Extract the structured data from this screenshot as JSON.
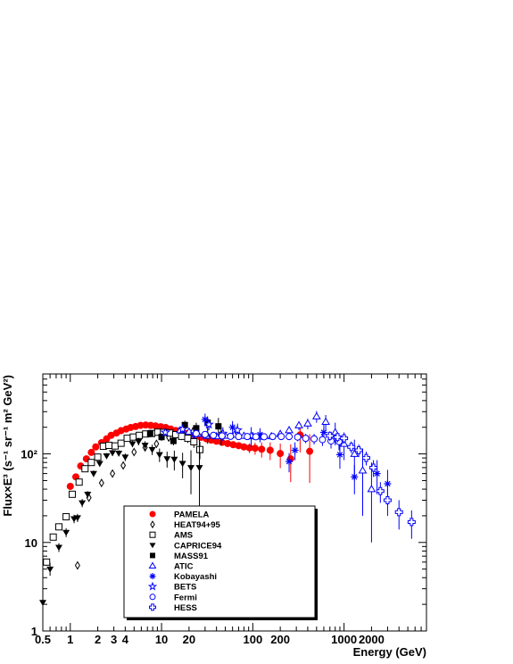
{
  "chart_data": {
    "type": "scatter",
    "xlabel": "Energy (GeV)",
    "ylabel": "Flux×E³ (s⁻¹ sr⁻¹ m² GeV²)",
    "xscale": "log",
    "yscale": "log",
    "xlim": [
      0.5,
      8000
    ],
    "ylim": [
      1,
      800
    ],
    "x_tick_labels": [
      "0.5",
      "1",
      "2",
      "3",
      "4",
      "10",
      "20",
      "100",
      "200",
      "1000",
      "2000"
    ],
    "x_tick_values": [
      0.5,
      1,
      2,
      3,
      4,
      10,
      20,
      100,
      200,
      1000,
      2000
    ],
    "y_tick_labels": [
      "1",
      "10",
      "10²"
    ],
    "y_tick_values": [
      1,
      10,
      100
    ],
    "grid": false,
    "legend_placement": "bottom-center",
    "series": [
      {
        "name": "PAMELA",
        "marker": "filled-circle",
        "color": "#ff0000",
        "x": [
          1.0,
          1.15,
          1.3,
          1.5,
          1.7,
          1.9,
          2.2,
          2.5,
          2.8,
          3.2,
          3.6,
          4.1,
          4.6,
          5.2,
          5.9,
          6.7,
          7.6,
          8.6,
          9.8,
          11.1,
          12.6,
          14.3,
          16.2,
          18.4,
          20.9,
          23.7,
          27,
          31,
          35,
          40,
          46,
          53,
          61,
          70,
          80,
          92,
          106,
          125,
          155,
          200,
          260,
          330,
          420
        ],
        "y": [
          43,
          55,
          73,
          88,
          104,
          120,
          134,
          148,
          162,
          172,
          183,
          191,
          199,
          204,
          210,
          212,
          210,
          207,
          203,
          199,
          191,
          184,
          176,
          170,
          165,
          159,
          154,
          148,
          143,
          139,
          135,
          131,
          127,
          124,
          120,
          117,
          116,
          113,
          110,
          101,
          88,
          164,
          107
        ],
        "err_up": [
          0,
          0,
          0,
          0,
          0,
          0,
          0,
          0,
          0,
          0,
          0,
          0,
          0,
          0,
          0,
          0,
          0,
          0,
          0,
          0,
          0,
          0,
          0,
          0,
          0,
          0,
          0,
          0,
          0,
          0,
          0,
          0,
          0,
          0,
          10,
          15,
          18,
          22,
          25,
          30,
          40,
          60,
          60
        ],
        "err_dn": [
          0,
          0,
          0,
          0,
          0,
          0,
          0,
          0,
          0,
          0,
          0,
          0,
          0,
          0,
          0,
          0,
          0,
          0,
          0,
          0,
          0,
          0,
          0,
          0,
          0,
          0,
          0,
          0,
          0,
          0,
          0,
          0,
          0,
          0,
          10,
          15,
          18,
          22,
          25,
          32,
          40,
          60,
          60
        ]
      },
      {
        "name": "HEAT94+95",
        "marker": "open-diamond",
        "color": "#000000",
        "x": [
          1.2,
          1.6,
          2.2,
          2.9,
          3.8,
          5,
          6.6,
          8.8,
          12,
          16,
          22,
          32,
          45
        ],
        "y": [
          5.5,
          32,
          47,
          60,
          74,
          105,
          118,
          130,
          153,
          163,
          178,
          160,
          165
        ],
        "err_up": [
          0.5,
          3,
          4,
          5,
          6,
          8,
          10,
          12,
          15,
          18,
          22,
          30,
          40
        ],
        "err_dn": [
          0.5,
          3,
          4,
          5,
          6,
          8,
          10,
          12,
          15,
          18,
          22,
          30,
          40
        ]
      },
      {
        "name": "AMS",
        "marker": "open-square",
        "color": "#000000",
        "x": [
          0.55,
          0.65,
          0.75,
          0.9,
          1.05,
          1.25,
          1.45,
          1.7,
          2.0,
          2.3,
          2.65,
          3.1,
          3.6,
          4.2,
          4.9,
          5.7,
          6.7,
          7.8,
          9.1,
          10.5,
          12.3,
          14.3,
          16.6,
          19.4,
          22.6,
          26.3
        ],
        "y": [
          6,
          11.5,
          15,
          19.5,
          35,
          48,
          68,
          80,
          92,
          122,
          125,
          123,
          132,
          150,
          155,
          162,
          168,
          170,
          176,
          175,
          172,
          165,
          158,
          150,
          137,
          112
        ],
        "err_up": [
          0.5,
          0.8,
          1,
          1.5,
          2,
          3,
          4,
          4,
          5,
          6,
          6,
          6,
          7,
          7,
          8,
          8,
          9,
          9,
          10,
          11,
          12,
          13,
          15,
          17,
          20,
          25
        ],
        "err_dn": [
          0.5,
          0.8,
          1,
          1.5,
          2,
          3,
          4,
          4,
          5,
          6,
          6,
          6,
          7,
          7,
          8,
          8,
          9,
          9,
          10,
          11,
          12,
          13,
          15,
          17,
          20,
          25
        ]
      },
      {
        "name": "CAPRICE94",
        "marker": "filled-triangle-down",
        "color": "#000000",
        "x": [
          0.5,
          0.6,
          0.75,
          0.9,
          1.1,
          1.2,
          1.35,
          1.55,
          1.8,
          2.1,
          2.5,
          2.9,
          3.4,
          4.0,
          4.8,
          5.6,
          6.6,
          7.9,
          9.5,
          11.5,
          13.8,
          17,
          21,
          26
        ],
        "y": [
          2.1,
          5.0,
          8.8,
          13,
          18.5,
          19,
          28,
          35,
          60,
          78,
          95,
          103,
          102,
          92,
          130,
          138,
          125,
          112,
          98,
          88,
          87,
          78,
          70,
          70
        ],
        "err_up": [
          0.5,
          0.9,
          1,
          1.5,
          2,
          2,
          3,
          3,
          5,
          6,
          7,
          8,
          8,
          9,
          11,
          13,
          14,
          15,
          17,
          18,
          22,
          25,
          40,
          100
        ],
        "err_dn": [
          0.4,
          0.8,
          1,
          1.5,
          2,
          2,
          3,
          3,
          5,
          6,
          7,
          8,
          8,
          9,
          11,
          13,
          14,
          15,
          17,
          18,
          22,
          25,
          35,
          45
        ]
      },
      {
        "name": "MASS91",
        "marker": "filled-square",
        "color": "#000000",
        "x": [
          7.5,
          10,
          13.5,
          18,
          24,
          32,
          42
        ],
        "y": [
          170,
          155,
          140,
          212,
          195,
          225,
          205
        ],
        "err_up": [
          15,
          15,
          15,
          25,
          30,
          40,
          50
        ],
        "err_dn": [
          15,
          15,
          15,
          25,
          30,
          40,
          50
        ]
      },
      {
        "name": "ATIC",
        "marker": "open-triangle-up",
        "color": "#0000ff",
        "x": [
          16,
          20,
          25,
          31,
          40,
          50,
          63,
          80,
          100,
          125,
          160,
          200,
          250,
          320,
          400,
          500,
          630,
          800,
          1000,
          1300,
          1600,
          2000
        ],
        "y": [
          185,
          178,
          168,
          160,
          158,
          160,
          165,
          160,
          158,
          157,
          158,
          168,
          185,
          210,
          220,
          265,
          230,
          175,
          130,
          100,
          65,
          40
        ],
        "err_up": [
          10,
          10,
          10,
          10,
          10,
          10,
          12,
          12,
          12,
          13,
          14,
          16,
          20,
          25,
          30,
          40,
          45,
          50,
          45,
          45,
          50,
          40
        ],
        "err_dn": [
          10,
          10,
          10,
          10,
          10,
          10,
          12,
          12,
          12,
          13,
          14,
          16,
          20,
          25,
          30,
          40,
          45,
          50,
          45,
          45,
          45,
          30
        ]
      },
      {
        "name": "Kobayashi",
        "marker": "asterisk",
        "color": "#0000ff",
        "x": [
          30,
          60,
          120,
          250,
          290,
          600,
          900,
          1300,
          2300,
          3000
        ],
        "y": [
          245,
          200,
          165,
          82,
          110,
          175,
          98,
          55,
          60,
          46
        ],
        "err_up": [
          40,
          35,
          30,
          20,
          25,
          40,
          30,
          20,
          25,
          20
        ],
        "err_dn": [
          40,
          35,
          30,
          20,
          25,
          40,
          30,
          20,
          25,
          20
        ]
      },
      {
        "name": "BETS",
        "marker": "open-star",
        "color": "#0000ff",
        "x": [
          11,
          17,
          23,
          33,
          47,
          68,
          96
        ],
        "y": [
          175,
          190,
          168,
          215,
          170,
          185,
          160
        ],
        "err_up": [
          15,
          20,
          20,
          30,
          30,
          35,
          40
        ],
        "err_dn": [
          15,
          20,
          20,
          30,
          30,
          35,
          40
        ]
      },
      {
        "name": "Fermi",
        "marker": "open-circle",
        "color": "#0000ff",
        "x": [
          24,
          30,
          37,
          46,
          57,
          70,
          87,
          108,
          133,
          165,
          205,
          250,
          310,
          380,
          470,
          580,
          720,
          880
        ],
        "y": [
          170,
          166,
          162,
          160,
          158,
          157,
          157,
          156,
          156,
          157,
          157,
          157,
          155,
          150,
          148,
          145,
          140,
          138
        ],
        "err_up": [
          8,
          8,
          8,
          8,
          8,
          9,
          9,
          10,
          10,
          11,
          12,
          14,
          16,
          18,
          20,
          22,
          25,
          28
        ],
        "err_dn": [
          8,
          8,
          8,
          8,
          8,
          9,
          9,
          10,
          10,
          11,
          12,
          14,
          16,
          18,
          20,
          22,
          25,
          28
        ]
      },
      {
        "name": "HESS",
        "marker": "open-cross",
        "color": "#0000ff",
        "x": [
          700,
          850,
          1000,
          1200,
          1450,
          1750,
          2100,
          2500,
          3000,
          4000,
          5500
        ],
        "y": [
          160,
          155,
          150,
          120,
          110,
          90,
          70,
          38,
          30,
          22,
          17
        ],
        "err_up": [
          20,
          20,
          20,
          18,
          18,
          16,
          15,
          10,
          10,
          8,
          6
        ],
        "err_dn": [
          20,
          20,
          20,
          18,
          18,
          16,
          15,
          10,
          10,
          8,
          6
        ]
      }
    ]
  }
}
